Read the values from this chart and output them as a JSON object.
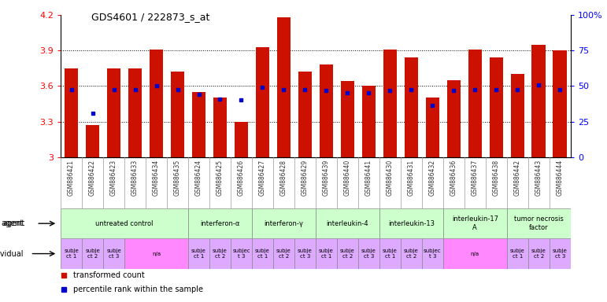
{
  "title": "GDS4601 / 222873_s_at",
  "samples": [
    "GSM886421",
    "GSM886422",
    "GSM886423",
    "GSM886433",
    "GSM886434",
    "GSM886435",
    "GSM886424",
    "GSM886425",
    "GSM886426",
    "GSM886427",
    "GSM886428",
    "GSM886429",
    "GSM886439",
    "GSM886440",
    "GSM886441",
    "GSM886430",
    "GSM886431",
    "GSM886432",
    "GSM886436",
    "GSM886437",
    "GSM886438",
    "GSM886442",
    "GSM886443",
    "GSM886444"
  ],
  "red_values": [
    3.75,
    3.27,
    3.75,
    3.75,
    3.91,
    3.72,
    3.55,
    3.5,
    3.3,
    3.93,
    4.18,
    3.72,
    3.78,
    3.64,
    3.6,
    3.91,
    3.84,
    3.5,
    3.65,
    3.91,
    3.84,
    3.7,
    3.95,
    3.9
  ],
  "blue_values": [
    3.57,
    3.37,
    3.57,
    3.57,
    3.6,
    3.57,
    3.53,
    3.49,
    3.48,
    3.59,
    3.57,
    3.57,
    3.56,
    3.54,
    3.54,
    3.56,
    3.57,
    3.44,
    3.56,
    3.57,
    3.57,
    3.57,
    3.61,
    3.57
  ],
  "ylim_left": [
    3.0,
    4.2
  ],
  "ylim_right": [
    0,
    100
  ],
  "yticks_left": [
    3.0,
    3.3,
    3.6,
    3.9,
    4.2
  ],
  "yticks_right": [
    0,
    25,
    50,
    75,
    100
  ],
  "agent_groups": [
    {
      "label": "untreated control",
      "start": 0,
      "end": 5,
      "color": "#ccffcc"
    },
    {
      "label": "interferon-α",
      "start": 6,
      "end": 8,
      "color": "#ccffcc"
    },
    {
      "label": "interferon-γ",
      "start": 9,
      "end": 11,
      "color": "#ccffcc"
    },
    {
      "label": "interleukin-4",
      "start": 12,
      "end": 14,
      "color": "#ccffcc"
    },
    {
      "label": "interleukin-13",
      "start": 15,
      "end": 17,
      "color": "#ccffcc"
    },
    {
      "label": "interleukin-17\nA",
      "start": 18,
      "end": 20,
      "color": "#ccffcc"
    },
    {
      "label": "tumor necrosis\nfactor",
      "start": 21,
      "end": 23,
      "color": "#ccffcc"
    }
  ],
  "individual_groups": [
    {
      "label": "subje\nct 1",
      "start": 0,
      "end": 0,
      "color": "#ddaaff"
    },
    {
      "label": "subje\nct 2",
      "start": 1,
      "end": 1,
      "color": "#ddaaff"
    },
    {
      "label": "subje\nct 3",
      "start": 2,
      "end": 2,
      "color": "#ddaaff"
    },
    {
      "label": "n/a",
      "start": 3,
      "end": 5,
      "color": "#ff88ff"
    },
    {
      "label": "subje\nct 1",
      "start": 6,
      "end": 6,
      "color": "#ddaaff"
    },
    {
      "label": "subje\nct 2",
      "start": 7,
      "end": 7,
      "color": "#ddaaff"
    },
    {
      "label": "subjec\nt 3",
      "start": 8,
      "end": 8,
      "color": "#ddaaff"
    },
    {
      "label": "subje\nct 1",
      "start": 9,
      "end": 9,
      "color": "#ddaaff"
    },
    {
      "label": "subje\nct 2",
      "start": 10,
      "end": 10,
      "color": "#ddaaff"
    },
    {
      "label": "subje\nct 3",
      "start": 11,
      "end": 11,
      "color": "#ddaaff"
    },
    {
      "label": "subje\nct 1",
      "start": 12,
      "end": 12,
      "color": "#ddaaff"
    },
    {
      "label": "subje\nct 2",
      "start": 13,
      "end": 13,
      "color": "#ddaaff"
    },
    {
      "label": "subje\nct 3",
      "start": 14,
      "end": 14,
      "color": "#ddaaff"
    },
    {
      "label": "subje\nct 1",
      "start": 15,
      "end": 15,
      "color": "#ddaaff"
    },
    {
      "label": "subje\nct 2",
      "start": 16,
      "end": 16,
      "color": "#ddaaff"
    },
    {
      "label": "subjec\nt 3",
      "start": 17,
      "end": 17,
      "color": "#ddaaff"
    },
    {
      "label": "n/a",
      "start": 18,
      "end": 20,
      "color": "#ff88ff"
    },
    {
      "label": "subje\nct 1",
      "start": 21,
      "end": 21,
      "color": "#ddaaff"
    },
    {
      "label": "subje\nct 2",
      "start": 22,
      "end": 22,
      "color": "#ddaaff"
    },
    {
      "label": "subje\nct 3",
      "start": 23,
      "end": 23,
      "color": "#ddaaff"
    }
  ],
  "bar_color": "#cc1100",
  "blue_color": "#0000cc",
  "bar_bottom": 3.0,
  "figsize": [
    7.71,
    3.84
  ],
  "dpi": 100,
  "bg_color": "#ffffff"
}
